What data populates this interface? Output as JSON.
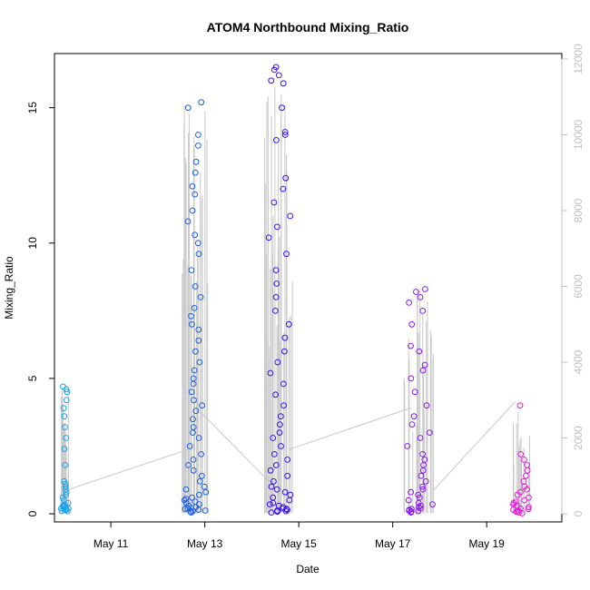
{
  "chart_data": {
    "type": "scatter",
    "title": "ATOM4 Northbound Mixing_Ratio",
    "xlabel": "Date",
    "ylabel": "Mixing_Ratio",
    "x_unit": "day of May (fractional)",
    "xlim": [
      9.8,
      20.6
    ],
    "ylim": [
      -0.3,
      17.0
    ],
    "y2lim": [
      -0.3,
      17.0
    ],
    "x_ticks": [
      11,
      13,
      15,
      17,
      19
    ],
    "x_tick_labels": [
      "May 11",
      "May 13",
      "May 15",
      "May 17",
      "May 19"
    ],
    "y_ticks": [
      0,
      5,
      10,
      15
    ],
    "y_tick_labels": [
      "0",
      "5",
      "10",
      "15"
    ],
    "y2_ticks": [
      0,
      2000,
      4000,
      6000,
      8000,
      10000,
      12000
    ],
    "y2_tick_labels": [
      "0",
      "2000",
      "4000",
      "6000",
      "8000",
      "10000",
      "12000"
    ],
    "y2_scale": 0.0014,
    "grid": false,
    "legend": "none",
    "point_color_gradient": [
      "#1aa3e8",
      "#1a5fe8",
      "#3a10f0",
      "#8a18f5",
      "#e81ad8"
    ],
    "altitude_line_color": "#c8c8c8",
    "point_groups": [
      {
        "x_center": 10.02,
        "x_spread": 0.09,
        "color": "#1aa3e8",
        "values": [
          0.1,
          0.15,
          0.2,
          0.25,
          0.3,
          0.35,
          0.15,
          0.2,
          0.1,
          0.3,
          0.25,
          0.2,
          0.4,
          0.5,
          0.6,
          0.7,
          0.8,
          0.9,
          1.0,
          1.1,
          1.2,
          1.8,
          2.4,
          2.8,
          3.2,
          3.6,
          3.9,
          4.2,
          4.5,
          4.6,
          4.7
        ]
      },
      {
        "x_center": 12.8,
        "x_spread": 0.3,
        "color": "#1a5fe8",
        "values": [
          0.05,
          0.08,
          0.1,
          0.12,
          0.15,
          0.18,
          0.2,
          0.22,
          0.25,
          0.3,
          0.35,
          0.4,
          0.45,
          0.5,
          0.55,
          0.6,
          0.7,
          0.8,
          0.9,
          1.0,
          1.2,
          1.4,
          1.6,
          1.8,
          2.0,
          2.2,
          2.5,
          2.8,
          3.0,
          3.2,
          3.5,
          3.8,
          4.0,
          4.2,
          4.5,
          4.8,
          5.0,
          5.3,
          5.6,
          6.0,
          6.4,
          6.8,
          7.0,
          7.3,
          7.6,
          8.0,
          8.4,
          9.0,
          9.6,
          10.0,
          10.3,
          10.8,
          11.2,
          11.8,
          12.1,
          12.6,
          13.0,
          13.6,
          14.0,
          15.0,
          15.2
        ]
      },
      {
        "x_center": 14.6,
        "x_spread": 0.35,
        "color": "#3a10f0",
        "values": [
          0.05,
          0.08,
          0.1,
          0.12,
          0.15,
          0.18,
          0.2,
          0.25,
          0.3,
          0.35,
          0.4,
          0.5,
          0.6,
          0.7,
          0.8,
          0.9,
          1.0,
          1.2,
          1.4,
          1.6,
          1.8,
          2.0,
          2.2,
          2.5,
          2.8,
          3.0,
          3.3,
          3.6,
          4.0,
          4.4,
          4.8,
          5.2,
          5.6,
          6.0,
          6.5,
          7.0,
          7.5,
          8.0,
          8.5,
          9.0,
          9.6,
          10.2,
          10.6,
          11.0,
          11.5,
          12.0,
          12.4,
          13.8,
          14.0,
          14.1,
          15.0,
          15.9,
          16.0,
          16.2,
          16.4,
          16.5
        ]
      },
      {
        "x_center": 17.55,
        "x_spread": 0.35,
        "color": "#8a18f5",
        "values": [
          0.05,
          0.08,
          0.1,
          0.12,
          0.15,
          0.18,
          0.2,
          0.25,
          0.3,
          0.35,
          0.4,
          0.5,
          0.6,
          0.7,
          0.8,
          0.9,
          1.0,
          1.2,
          1.4,
          1.6,
          1.8,
          2.0,
          2.2,
          2.5,
          2.8,
          3.0,
          3.3,
          3.6,
          4.0,
          4.5,
          5.0,
          5.3,
          5.5,
          6.0,
          6.2,
          7.0,
          7.5,
          7.8,
          8.0,
          8.2,
          8.3
        ]
      },
      {
        "x_center": 19.75,
        "x_spread": 0.22,
        "color": "#e81ad8",
        "values": [
          0.02,
          0.05,
          0.08,
          0.1,
          0.12,
          0.15,
          0.18,
          0.2,
          0.25,
          0.3,
          0.35,
          0.4,
          0.45,
          0.5,
          0.6,
          0.7,
          0.8,
          0.9,
          1.0,
          1.2,
          1.4,
          1.6,
          1.8,
          2.0,
          2.2,
          4.0
        ]
      }
    ],
    "altitude_connectors": [
      {
        "x": [
          10.0,
          12.65
        ],
        "y2": [
          600,
          1700
        ]
      },
      {
        "x": [
          12.9,
          14.45
        ],
        "y2": [
          2700,
          750
        ]
      },
      {
        "x": [
          14.8,
          17.4
        ],
        "y2": [
          1700,
          2800
        ]
      },
      {
        "x": [
          17.85,
          19.6
        ],
        "y2": [
          600,
          2950
        ]
      }
    ]
  }
}
